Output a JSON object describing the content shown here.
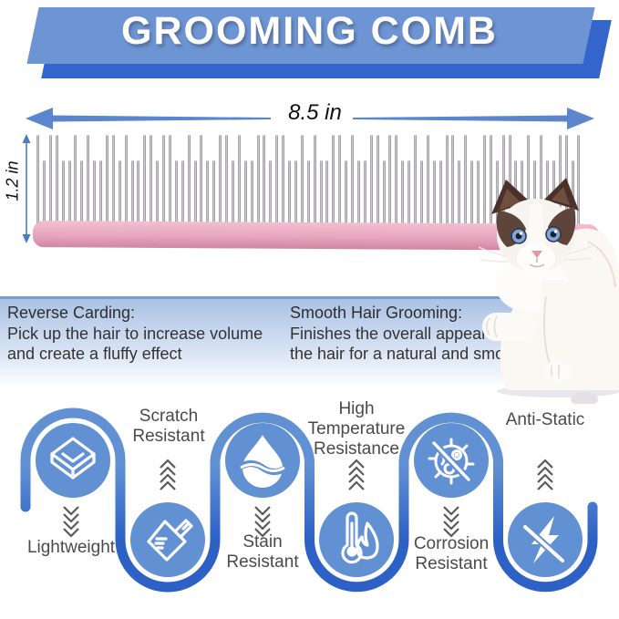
{
  "banner": {
    "title": "GROOMING COMB"
  },
  "dimensions": {
    "width": "8.5 in",
    "height": "1.2 in"
  },
  "descriptions": {
    "reverse_carding": {
      "title": "Reverse Carding:",
      "line1": "Pick up the hair to increase volume",
      "line2": "and create a fluffy effect"
    },
    "smooth_grooming": {
      "title": "Smooth Hair Grooming:",
      "line1": "Finishes the overall appearance of",
      "line2": "the hair for a natural and smooth"
    }
  },
  "features": [
    {
      "label": "Lightweight",
      "icon": "cube-layers-icon"
    },
    {
      "label": "Scratch Resistant",
      "icon": "plate-pen-icon"
    },
    {
      "label": "Stain Resistant",
      "icon": "water-drop-icon"
    },
    {
      "label": "High Temperature Resistance",
      "icon": "thermometer-flame-icon"
    },
    {
      "label": "Corrosion Resistant",
      "icon": "no-germ-icon"
    },
    {
      "label": "Anti-Static",
      "icon": "no-lightning-icon"
    }
  ],
  "colors": {
    "banner_light": "#6d95d3",
    "banner_dark": "#3365cb",
    "arrow_blue": "#5b85cd",
    "comb_handle_pink": "#e7a6bd",
    "serpentine_light": "#6191d3",
    "serpentine_dark": "#2d61c6",
    "panel_blue": "#aac2e5",
    "label_gray": "#4a4a4a"
  }
}
